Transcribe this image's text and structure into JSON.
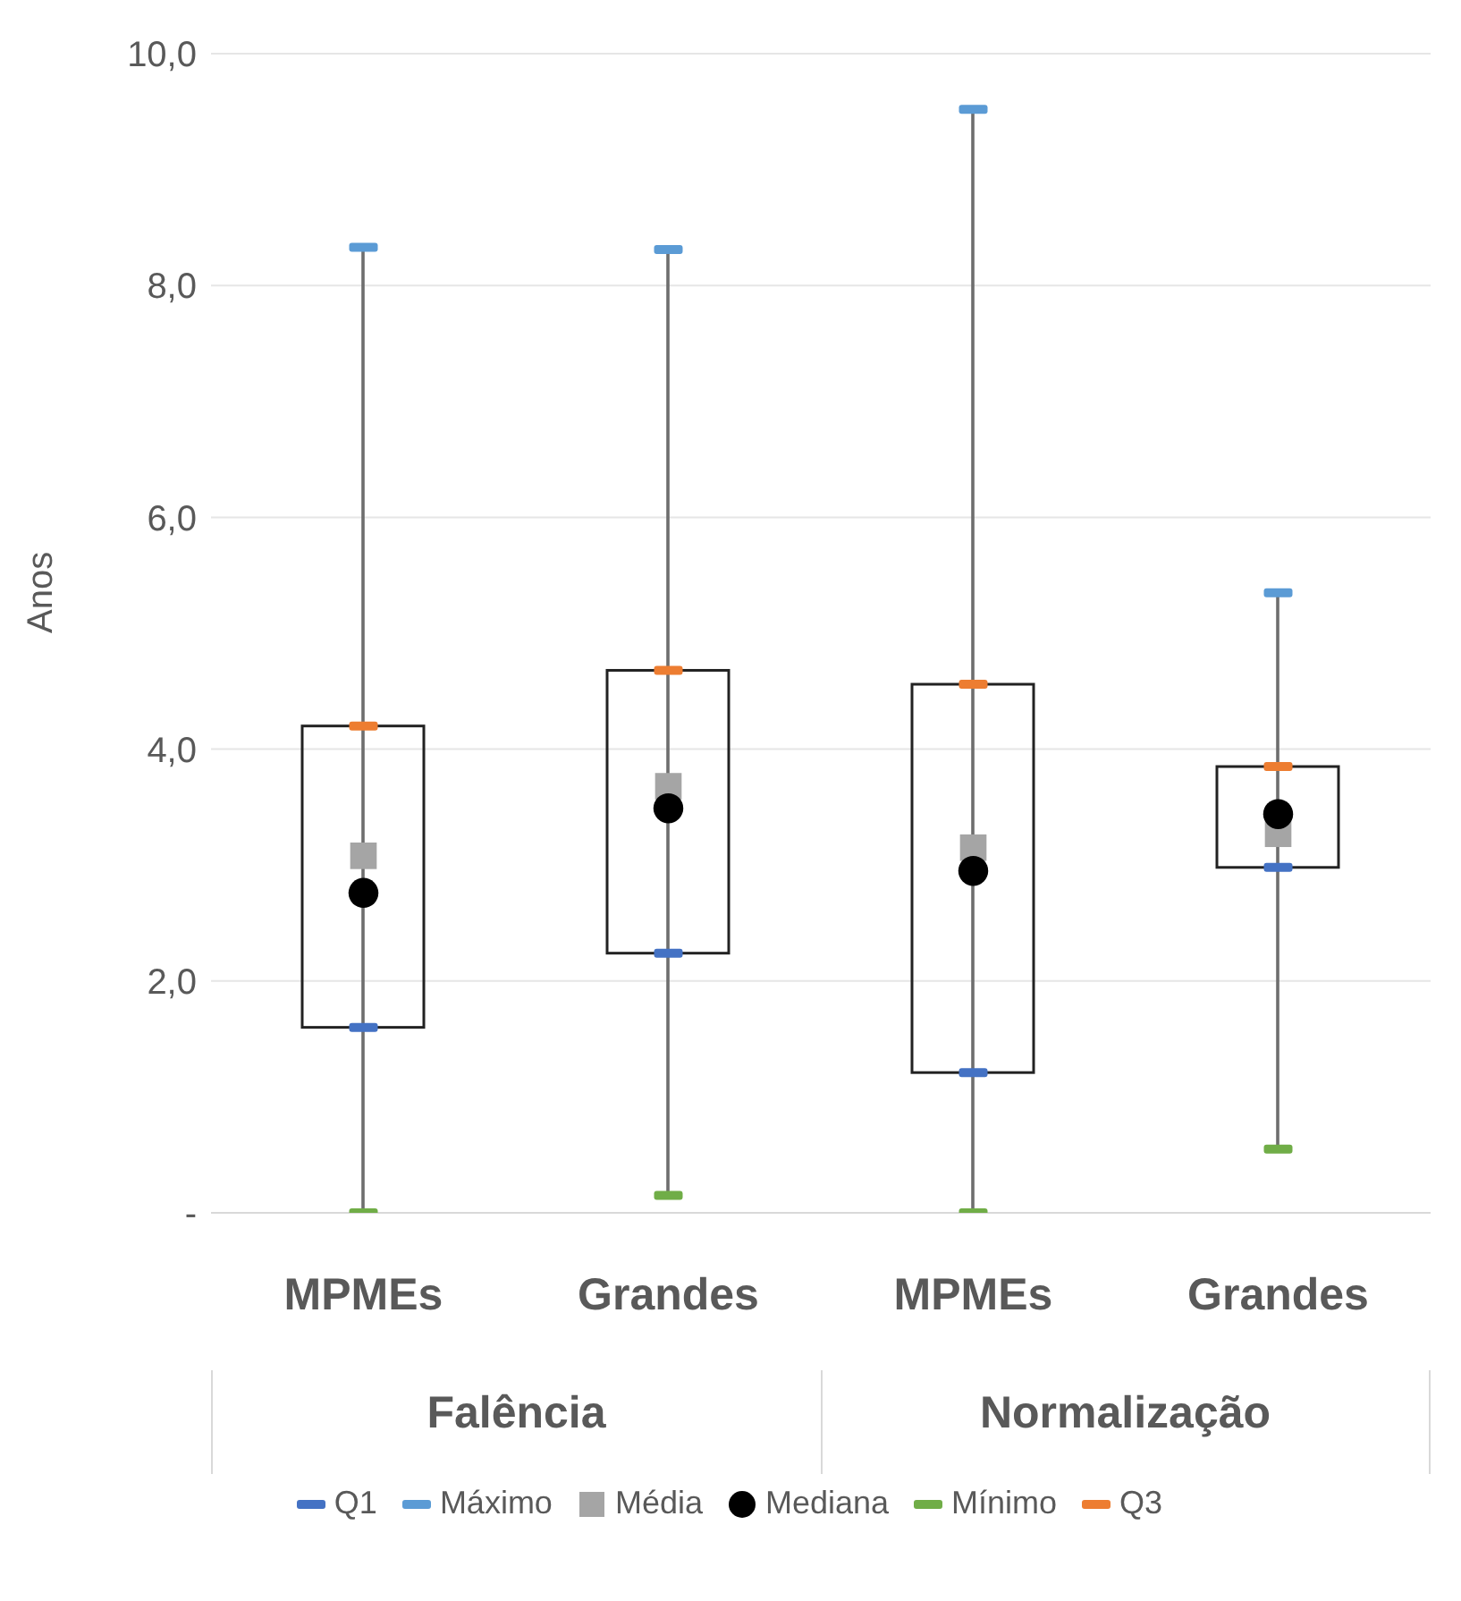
{
  "chart_data": {
    "type": "scatter",
    "ylabel": "Anos",
    "categories": [
      "MPMEs",
      "Grandes",
      "MPMEs",
      "Grandes"
    ],
    "annotations": [
      "Falência",
      "Normalização"
    ],
    "series": [
      {
        "type": "bar",
        "color": "#6e6e6e",
        "base": [
          0,
          0.15,
          0,
          0.55
        ],
        "values": [
          8.33,
          8.16,
          9.52,
          4.8
        ]
      },
      {
        "type": "bar",
        "color": "#222222",
        "base": [
          1.6,
          2.24,
          1.21,
          2.98
        ],
        "values": [
          2.6,
          2.44,
          3.35,
          0.87
        ]
      },
      {
        "name": "Q1",
        "color": "#4472c4",
        "type": "scatter",
        "values": [
          1.6,
          2.24,
          1.21,
          2.98
        ]
      },
      {
        "name": "Máximo",
        "color": "#5b9bd5",
        "type": "scatter",
        "values": [
          8.33,
          8.31,
          9.52,
          5.35
        ]
      },
      {
        "name": "Média",
        "color": "#a5a5a5",
        "type": "scatter",
        "marker": "square",
        "values": [
          3.08,
          3.68,
          3.15,
          3.27
        ]
      },
      {
        "name": "Mediana",
        "color": "#000000",
        "type": "scatter",
        "marker": "circle",
        "values": [
          2.76,
          3.49,
          2.95,
          3.44
        ]
      },
      {
        "name": "Mínimo",
        "color": "#70ad47",
        "type": "scatter",
        "values": [
          0,
          0.15,
          0,
          0.55
        ]
      },
      {
        "name": "Q3",
        "color": "#ed7d31",
        "type": "scatter",
        "values": [
          4.2,
          4.68,
          4.56,
          3.85
        ]
      }
    ],
    "ylim": [
      0,
      10
    ],
    "yticks": [
      {
        "value": 0,
        "label": "-"
      },
      {
        "value": 2,
        "label": "2,0"
      },
      {
        "value": 4,
        "label": "4,0"
      },
      {
        "value": 6,
        "label": "6,0"
      },
      {
        "value": 8,
        "label": "8,0"
      },
      {
        "value": 10,
        "label": "10,0"
      }
    ],
    "grid": "y",
    "legend": "bottom"
  }
}
